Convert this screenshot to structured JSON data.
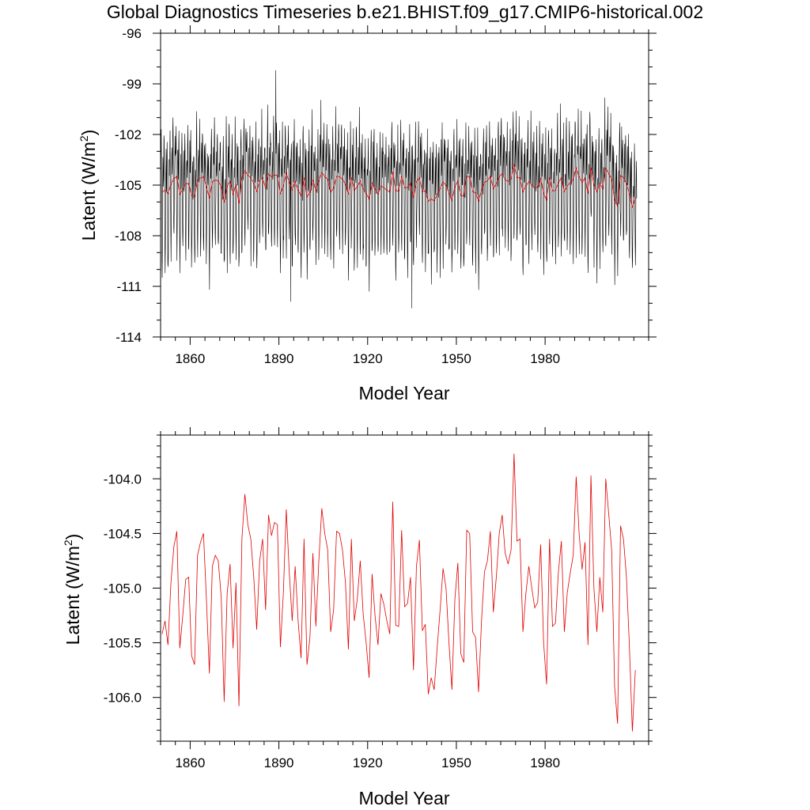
{
  "title": "Global Diagnostics Timeseries b.e21.BHIST.f09_g17.CMIP6-historical.002",
  "chart_data": [
    {
      "type": "line",
      "title": "Global Diagnostics Timeseries b.e21.BHIST.f09_g17.CMIP6-historical.002",
      "xlabel": "Model Year",
      "ylabel": "Latent (W/m",
      "ylabel_sup": "2",
      "ylabel_close": ")",
      "xlim": [
        1850,
        2015
      ],
      "ylim": [
        -114,
        -96
      ],
      "x_ticks": [
        1860,
        1890,
        1920,
        1950,
        1980
      ],
      "y_ticks": [
        -96,
        -99,
        -102,
        -105,
        -108,
        -111,
        -114
      ],
      "y_tick_labels": [
        "-96",
        "-99",
        "-102",
        "-105",
        "-108",
        "-111",
        "-114"
      ],
      "x_tick_labels": [
        "1860",
        "1890",
        "1920",
        "1950",
        "1980"
      ],
      "series": [
        {
          "kind": "monthly",
          "color": "#000000",
          "description_values": "monthly values, seasonal cycle roughly -101 to -110 W/m2",
          "monthly_cycle": [
            -104.2,
            -102.9,
            -102.0,
            -103.6,
            -106.2,
            -108.4,
            -109.0,
            -107.6,
            -105.3,
            -103.8,
            -103.3,
            -104.6
          ],
          "extremes": [
            {
              "year": 1889.0,
              "value": -98.2
            },
            {
              "year": 1894.0,
              "value": -111.9
            },
            {
              "year": 1935.0,
              "value": -112.3
            }
          ]
        },
        {
          "kind": "annual",
          "color": "#e00000",
          "source": "annual_mean"
        }
      ]
    },
    {
      "type": "line",
      "xlabel": "Model Year",
      "ylabel": "Latent (W/m",
      "ylabel_sup": "2",
      "ylabel_close": ")",
      "xlim": [
        1850,
        2015
      ],
      "ylim": [
        -106.4,
        -103.6
      ],
      "x_ticks": [
        1860,
        1890,
        1920,
        1950,
        1980
      ],
      "x_tick_labels": [
        "1860",
        "1890",
        "1920",
        "1950",
        "1980"
      ],
      "y_ticks": [
        -104.0,
        -104.5,
        -105.0,
        -105.5,
        -106.0
      ],
      "y_tick_labels": [
        "-104.0",
        "-104.5",
        "-105.0",
        "-105.5",
        "-106.0"
      ],
      "series": [
        {
          "kind": "annual",
          "color": "#e00000",
          "x_start": 1850,
          "values": [
            -105.42,
            -105.3,
            -105.52,
            -104.95,
            -104.62,
            -104.48,
            -105.55,
            -105.25,
            -104.92,
            -104.9,
            -105.62,
            -105.7,
            -104.7,
            -104.58,
            -104.5,
            -105.1,
            -105.78,
            -104.8,
            -104.7,
            -104.75,
            -105.08,
            -106.04,
            -105.05,
            -104.78,
            -105.55,
            -104.95,
            -106.08,
            -104.55,
            -104.14,
            -104.42,
            -104.55,
            -104.9,
            -105.38,
            -104.75,
            -104.55,
            -105.2,
            -104.33,
            -104.52,
            -104.4,
            -104.42,
            -105.54,
            -105.05,
            -104.28,
            -104.85,
            -105.3,
            -104.8,
            -105.3,
            -105.64,
            -104.55,
            -105.7,
            -105.45,
            -104.68,
            -105.35,
            -104.75,
            -104.27,
            -104.5,
            -104.65,
            -105.4,
            -105.2,
            -104.48,
            -104.5,
            -104.65,
            -104.95,
            -105.56,
            -104.55,
            -105.3,
            -105.1,
            -104.75,
            -105.24,
            -105.5,
            -105.82,
            -104.87,
            -105.25,
            -105.52,
            -105.05,
            -105.15,
            -105.3,
            -105.42,
            -104.21,
            -105.34,
            -105.35,
            -104.47,
            -105.17,
            -105.14,
            -104.9,
            -105.75,
            -104.8,
            -104.56,
            -105.39,
            -105.33,
            -105.97,
            -105.82,
            -105.93,
            -105.55,
            -105.2,
            -104.82,
            -105.0,
            -105.5,
            -105.93,
            -105.1,
            -104.77,
            -105.6,
            -105.68,
            -104.47,
            -104.5,
            -105.4,
            -105.45,
            -105.95,
            -105.3,
            -104.85,
            -104.75,
            -104.48,
            -105.22,
            -104.9,
            -104.5,
            -104.33,
            -104.68,
            -104.78,
            -104.65,
            -103.77,
            -104.57,
            -104.55,
            -105.4,
            -105.05,
            -104.8,
            -105.0,
            -105.18,
            -105.13,
            -104.6,
            -105.5,
            -105.88,
            -104.55,
            -105.35,
            -105.32,
            -104.85,
            -104.57,
            -105.4,
            -105.04,
            -104.86,
            -104.7,
            -103.98,
            -104.5,
            -104.83,
            -104.58,
            -105.52,
            -103.97,
            -105.0,
            -105.4,
            -104.9,
            -105.22,
            -104.0,
            -104.32,
            -104.65,
            -105.9,
            -106.24,
            -104.43,
            -104.55,
            -104.9,
            -105.53,
            -106.31,
            -105.75
          ]
        }
      ]
    }
  ]
}
